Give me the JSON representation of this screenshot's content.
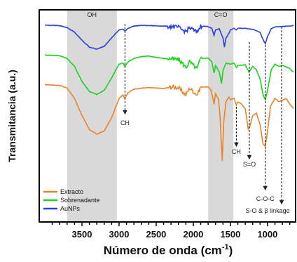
{
  "chart_data": {
    "type": "line",
    "xlabel": "Número de onda (cm",
    "xlabel_sup": "-1",
    "xlabel_close": ")",
    "ylabel": "Transmitancia (a.u.)",
    "xlim": [
      4000,
      650
    ],
    "x_ticks": [
      3500,
      3000,
      2500,
      2000,
      1500,
      1000
    ],
    "x_tick_labels": [
      "3500",
      "3000",
      "2500",
      "2000",
      "1500",
      "1000"
    ],
    "grid": false,
    "legend_position": "bottom-left",
    "shaded_regions": [
      {
        "label": "OH",
        "x_from": 3700,
        "x_to": 3030
      },
      {
        "label": "C=O",
        "x_from": 1800,
        "x_to": 1460
      }
    ],
    "annotations": [
      {
        "label": "CH",
        "x": 2920
      },
      {
        "label": "CH",
        "x": 1420
      },
      {
        "label": "S=O",
        "x": 1245
      },
      {
        "label": "C-O-C",
        "x": 1030
      },
      {
        "label": "S-O & β linkage",
        "x": 810
      }
    ],
    "series": [
      {
        "name": "AuNPs",
        "color": "#2b3fe0",
        "points": [
          [
            4000,
            4.76
          ],
          [
            3800,
            4.74
          ],
          [
            3700,
            4.65
          ],
          [
            3600,
            4.45
          ],
          [
            3500,
            4.1
          ],
          [
            3400,
            3.8
          ],
          [
            3300,
            3.7
          ],
          [
            3200,
            3.84
          ],
          [
            3100,
            4.2
          ],
          [
            3000,
            4.55
          ],
          [
            2950,
            4.58
          ],
          [
            2920,
            4.5
          ],
          [
            2880,
            4.62
          ],
          [
            2800,
            4.72
          ],
          [
            2700,
            4.75
          ],
          [
            2600,
            4.74
          ],
          [
            2500,
            4.73
          ],
          [
            2400,
            4.72
          ],
          [
            2300,
            4.7
          ],
          [
            2200,
            4.66
          ],
          [
            2150,
            4.55
          ],
          [
            2100,
            4.48
          ],
          [
            2050,
            4.65
          ],
          [
            2000,
            4.55
          ],
          [
            1950,
            4.45
          ],
          [
            1900,
            4.72
          ],
          [
            1800,
            4.7
          ],
          [
            1750,
            4.62
          ],
          [
            1720,
            4.3
          ],
          [
            1700,
            4.55
          ],
          [
            1650,
            4.6
          ],
          [
            1600,
            4.2
          ],
          [
            1580,
            3.8
          ],
          [
            1560,
            4.2
          ],
          [
            1520,
            4.4
          ],
          [
            1500,
            4.55
          ],
          [
            1450,
            4.62
          ],
          [
            1420,
            4.55
          ],
          [
            1400,
            4.62
          ],
          [
            1300,
            4.62
          ],
          [
            1200,
            4.58
          ],
          [
            1100,
            4.45
          ],
          [
            1050,
            4.05
          ],
          [
            1030,
            3.95
          ],
          [
            1000,
            4.25
          ],
          [
            950,
            4.6
          ],
          [
            900,
            4.68
          ],
          [
            800,
            4.7
          ],
          [
            700,
            4.72
          ],
          [
            650,
            4.74
          ]
        ]
      },
      {
        "name": "Sobrenadante",
        "color": "#1ad41a",
        "points": [
          [
            4000,
            3.45
          ],
          [
            3800,
            3.42
          ],
          [
            3700,
            3.3
          ],
          [
            3600,
            2.95
          ],
          [
            3500,
            2.3
          ],
          [
            3400,
            1.85
          ],
          [
            3300,
            1.72
          ],
          [
            3200,
            1.9
          ],
          [
            3100,
            2.45
          ],
          [
            3000,
            3.05
          ],
          [
            2950,
            3.1
          ],
          [
            2920,
            2.95
          ],
          [
            2880,
            3.15
          ],
          [
            2800,
            3.3
          ],
          [
            2700,
            3.38
          ],
          [
            2600,
            3.4
          ],
          [
            2500,
            3.35
          ],
          [
            2400,
            3.3
          ],
          [
            2300,
            3.28
          ],
          [
            2200,
            3.25
          ],
          [
            2150,
            3.1
          ],
          [
            2100,
            2.9
          ],
          [
            2050,
            3.15
          ],
          [
            2000,
            3.0
          ],
          [
            1950,
            2.85
          ],
          [
            1900,
            3.3
          ],
          [
            1800,
            3.32
          ],
          [
            1750,
            3.15
          ],
          [
            1720,
            2.65
          ],
          [
            1700,
            3.0
          ],
          [
            1650,
            2.7
          ],
          [
            1620,
            2.2
          ],
          [
            1600,
            2.75
          ],
          [
            1560,
            3.1
          ],
          [
            1500,
            3.05
          ],
          [
            1450,
            3.1
          ],
          [
            1420,
            2.9
          ],
          [
            1400,
            3.0
          ],
          [
            1300,
            3.02
          ],
          [
            1250,
            2.7
          ],
          [
            1200,
            2.95
          ],
          [
            1150,
            2.8
          ],
          [
            1100,
            2.4
          ],
          [
            1060,
            1.7
          ],
          [
            1030,
            1.5
          ],
          [
            1000,
            1.9
          ],
          [
            950,
            2.8
          ],
          [
            900,
            3.05
          ],
          [
            850,
            2.95
          ],
          [
            800,
            3.0
          ],
          [
            700,
            2.85
          ],
          [
            650,
            2.7
          ]
        ]
      },
      {
        "name": "Extracto",
        "color": "#e9832a",
        "points": [
          [
            4000,
            2.15
          ],
          [
            3800,
            2.12
          ],
          [
            3700,
            2.0
          ],
          [
            3600,
            1.55
          ],
          [
            3500,
            0.8
          ],
          [
            3400,
            0.18
          ],
          [
            3300,
            -0.02
          ],
          [
            3200,
            0.12
          ],
          [
            3100,
            0.7
          ],
          [
            3000,
            1.55
          ],
          [
            2950,
            1.7
          ],
          [
            2920,
            1.55
          ],
          [
            2880,
            1.8
          ],
          [
            2800,
            1.95
          ],
          [
            2700,
            2.0
          ],
          [
            2600,
            2.02
          ],
          [
            2500,
            2.0
          ],
          [
            2400,
            1.98
          ],
          [
            2300,
            2.05
          ],
          [
            2200,
            2.02
          ],
          [
            2150,
            1.85
          ],
          [
            2100,
            1.7
          ],
          [
            2050,
            2.0
          ],
          [
            2000,
            1.85
          ],
          [
            1950,
            1.7
          ],
          [
            1900,
            2.05
          ],
          [
            1800,
            2.05
          ],
          [
            1760,
            1.9
          ],
          [
            1720,
            1.3
          ],
          [
            1700,
            1.75
          ],
          [
            1660,
            1.5
          ],
          [
            1640,
            0.8
          ],
          [
            1610,
            -1.2
          ],
          [
            1590,
            0.5
          ],
          [
            1560,
            1.4
          ],
          [
            1520,
            1.6
          ],
          [
            1500,
            1.5
          ],
          [
            1450,
            1.55
          ],
          [
            1420,
            1.25
          ],
          [
            1400,
            1.4
          ],
          [
            1350,
            1.3
          ],
          [
            1300,
            1.1
          ],
          [
            1260,
            0.2
          ],
          [
            1240,
            0.3
          ],
          [
            1200,
            0.8
          ],
          [
            1150,
            0.9
          ],
          [
            1100,
            0.4
          ],
          [
            1060,
            -0.45
          ],
          [
            1030,
            -0.55
          ],
          [
            1000,
            0.1
          ],
          [
            960,
            1.2
          ],
          [
            900,
            1.55
          ],
          [
            850,
            1.4
          ],
          [
            800,
            1.45
          ],
          [
            750,
            1.55
          ],
          [
            700,
            1.3
          ],
          [
            650,
            1.1
          ]
        ]
      }
    ]
  }
}
